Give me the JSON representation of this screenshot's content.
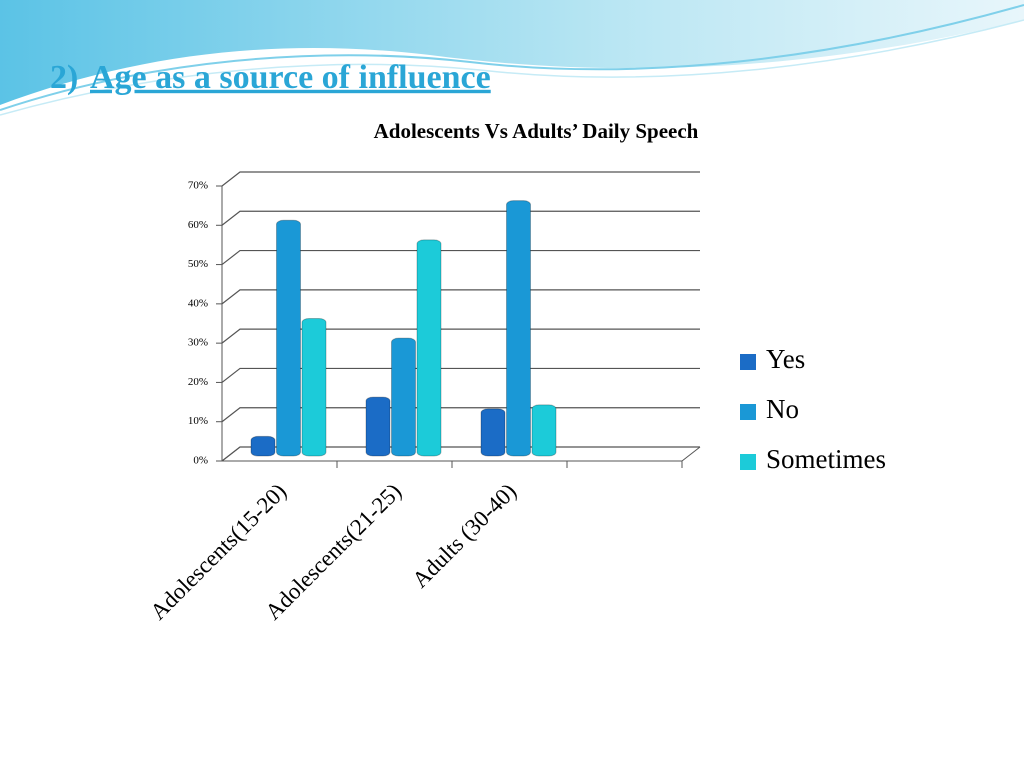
{
  "heading": {
    "number": "2)",
    "text": "Age as a source of influence"
  },
  "chart_data": {
    "type": "bar",
    "title": "Adolescents Vs Adults’ Daily Speech",
    "categories": [
      "Adolescents(15-20)",
      "Adolescents(21-25)",
      "Adults (30-40)"
    ],
    "series": [
      {
        "name": "Yes",
        "color": "#1b6cc6",
        "values": [
          5,
          15,
          12
        ]
      },
      {
        "name": "No",
        "color": "#1a98d6",
        "values": [
          60,
          30,
          65
        ]
      },
      {
        "name": "Sometimes",
        "color": "#1ccbd9",
        "values": [
          35,
          55,
          13
        ]
      }
    ],
    "ylim": [
      0,
      70
    ],
    "yticks": [
      {
        "value": 0,
        "label": "0%"
      },
      {
        "value": 10,
        "label": "10%"
      },
      {
        "value": 20,
        "label": "20%"
      },
      {
        "value": 30,
        "label": "30%"
      },
      {
        "value": 40,
        "label": "40%"
      },
      {
        "value": 50,
        "label": "50%"
      },
      {
        "value": 60,
        "label": "60%"
      },
      {
        "value": 70,
        "label": "70%"
      }
    ],
    "grid": true,
    "legend": "right"
  }
}
